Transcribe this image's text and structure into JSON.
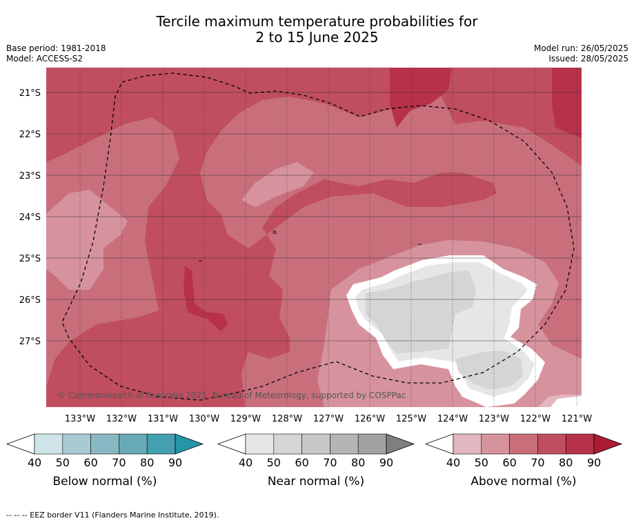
{
  "title_line1": "Tercile maximum temperature probabilities for",
  "title_line2": "2 to 15 June 2025",
  "left_meta": {
    "base_period": "Base period: 1981-2018",
    "model": "Model: ACCESS-S2"
  },
  "right_meta": {
    "model_run": "Model run: 26/05/2025",
    "issued": "Issued: 28/05/2025"
  },
  "map": {
    "lat_labels": [
      "21°S",
      "22°S",
      "23°S",
      "24°S",
      "25°S",
      "26°S",
      "27°S"
    ],
    "lon_labels": [
      "133°W",
      "132°W",
      "131°W",
      "130°W",
      "129°W",
      "128°W",
      "127°W",
      "126°W",
      "125°W",
      "124°W",
      "123°W",
      "122°W",
      "121°W"
    ],
    "copyright": "© Commonwealth of Australia 2025, Bureau of Meteorology, supported by COSPPac",
    "island_marker": "α"
  },
  "colorbars": [
    {
      "title": "Below normal (%)",
      "ticks": [
        "40",
        "50",
        "60",
        "70",
        "80",
        "90"
      ],
      "colors": [
        "#cfe4e9",
        "#a8cbd2",
        "#88b8c3",
        "#68a9b7",
        "#449fb0",
        "#2596a8"
      ]
    },
    {
      "title": "Near normal (%)",
      "ticks": [
        "40",
        "50",
        "60",
        "70",
        "80",
        "90"
      ],
      "colors": [
        "#e6e6e6",
        "#d5d5d5",
        "#c8c8c8",
        "#b5b5b5",
        "#a2a2a2",
        "#7f7f7f"
      ]
    },
    {
      "title": "Above normal (%)",
      "ticks": [
        "40",
        "50",
        "60",
        "70",
        "80",
        "90"
      ],
      "colors": [
        "#e3b7bf",
        "#d6939e",
        "#c96f7c",
        "#c04e5e",
        "#b7314a",
        "#ad1c35"
      ]
    }
  ],
  "legend_note": "--  --  -- EEZ border V11 (Flanders Marine Institute, 2019)."
}
